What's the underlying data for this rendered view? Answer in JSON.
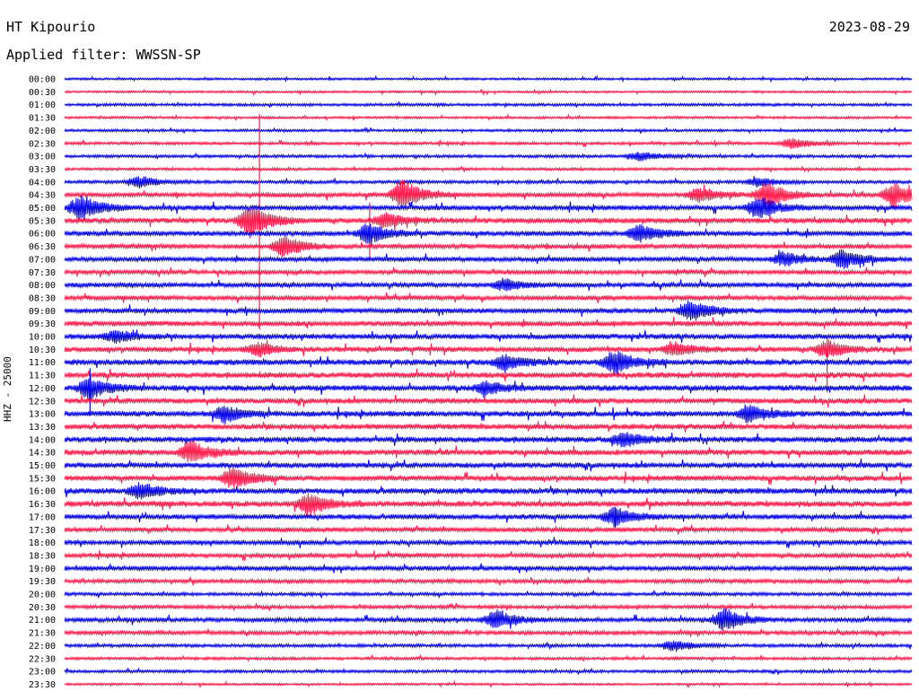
{
  "header": {
    "station": "HT Kipourio",
    "date": "2023-08-29",
    "filter": "Applied filter: WWSSN-SP"
  },
  "axis": {
    "ylabel": "HHZ - 25000"
  },
  "colors": {
    "even_trace": "#0000e6",
    "odd_trace": "#ff1a4a"
  },
  "chart_data": {
    "type": "line",
    "title": "HT Kipourio",
    "ylabel": "HHZ - 25000",
    "rows": [
      "00:00",
      "00:30",
      "01:00",
      "01:30",
      "02:00",
      "02:30",
      "03:00",
      "03:30",
      "04:00",
      "04:30",
      "05:00",
      "05:30",
      "06:00",
      "06:30",
      "07:00",
      "07:30",
      "08:00",
      "08:30",
      "09:00",
      "09:30",
      "10:00",
      "10:30",
      "11:00",
      "11:30",
      "12:00",
      "12:30",
      "13:00",
      "13:30",
      "14:00",
      "14:30",
      "15:00",
      "15:30",
      "16:00",
      "16:30",
      "17:00",
      "17:30",
      "18:00",
      "18:30",
      "19:00",
      "19:30",
      "20:00",
      "20:30",
      "21:00",
      "21:30",
      "22:00",
      "22:30",
      "23:00",
      "23:30"
    ],
    "row_minutes": 30,
    "noise_level": [
      1.2,
      1.2,
      1.5,
      1.3,
      1.4,
      1.6,
      1.6,
      1.5,
      1.8,
      2.5,
      2.8,
      3.0,
      2.8,
      2.6,
      2.6,
      2.4,
      2.6,
      2.6,
      2.8,
      3.0,
      3.0,
      3.0,
      3.2,
      3.2,
      3.2,
      3.0,
      3.2,
      3.0,
      3.2,
      3.2,
      3.0,
      3.0,
      3.2,
      3.2,
      2.8,
      2.6,
      2.6,
      2.4,
      2.6,
      2.2,
      1.8,
      2.0,
      2.4,
      2.2,
      1.8,
      1.6,
      1.6,
      1.2
    ],
    "events": [
      {
        "row": 5,
        "t": 0.86,
        "amp": 6
      },
      {
        "row": 6,
        "t": 0.68,
        "amp": 5
      },
      {
        "row": 8,
        "t": 0.09,
        "amp": 6
      },
      {
        "row": 8,
        "t": 0.82,
        "amp": 5
      },
      {
        "row": 9,
        "t": 0.4,
        "amp": 16
      },
      {
        "row": 9,
        "t": 0.75,
        "amp": 8
      },
      {
        "row": 9,
        "t": 0.83,
        "amp": 14
      },
      {
        "row": 9,
        "t": 0.98,
        "amp": 14
      },
      {
        "row": 10,
        "t": 0.02,
        "amp": 14
      },
      {
        "row": 10,
        "t": 0.82,
        "amp": 12
      },
      {
        "row": 11,
        "t": 0.22,
        "amp": 18
      },
      {
        "row": 11,
        "t": 0.38,
        "amp": 8
      },
      {
        "row": 12,
        "t": 0.36,
        "amp": 10
      },
      {
        "row": 12,
        "t": 0.68,
        "amp": 10
      },
      {
        "row": 13,
        "t": 0.26,
        "amp": 12
      },
      {
        "row": 14,
        "t": 0.85,
        "amp": 8
      },
      {
        "row": 14,
        "t": 0.92,
        "amp": 10
      },
      {
        "row": 16,
        "t": 0.52,
        "amp": 6
      },
      {
        "row": 18,
        "t": 0.74,
        "amp": 12
      },
      {
        "row": 20,
        "t": 0.06,
        "amp": 6
      },
      {
        "row": 21,
        "t": 0.23,
        "amp": 7
      },
      {
        "row": 21,
        "t": 0.72,
        "amp": 7
      },
      {
        "row": 21,
        "t": 0.9,
        "amp": 9
      },
      {
        "row": 22,
        "t": 0.52,
        "amp": 8
      },
      {
        "row": 22,
        "t": 0.65,
        "amp": 12
      },
      {
        "row": 24,
        "t": 0.03,
        "amp": 12
      },
      {
        "row": 24,
        "t": 0.5,
        "amp": 7
      },
      {
        "row": 26,
        "t": 0.19,
        "amp": 9
      },
      {
        "row": 26,
        "t": 0.81,
        "amp": 9
      },
      {
        "row": 28,
        "t": 0.66,
        "amp": 8
      },
      {
        "row": 29,
        "t": 0.15,
        "amp": 12
      },
      {
        "row": 31,
        "t": 0.2,
        "amp": 12
      },
      {
        "row": 32,
        "t": 0.09,
        "amp": 9
      },
      {
        "row": 33,
        "t": 0.29,
        "amp": 12
      },
      {
        "row": 34,
        "t": 0.65,
        "amp": 10
      },
      {
        "row": 42,
        "t": 0.51,
        "amp": 10
      },
      {
        "row": 42,
        "t": 0.78,
        "amp": 12
      },
      {
        "row": 44,
        "t": 0.72,
        "amp": 6
      }
    ],
    "spikes": [
      {
        "row": 9,
        "t": 0.23,
        "up": 90,
        "down": 150
      },
      {
        "row": 11,
        "t": 0.36,
        "up": 20,
        "down": 45
      },
      {
        "row": 21,
        "t": 0.9,
        "up": 14,
        "down": 48
      },
      {
        "row": 24,
        "t": 0.03,
        "up": 22,
        "down": 30
      },
      {
        "row": 34,
        "t": 0.65,
        "up": 10,
        "down": 12
      }
    ]
  }
}
